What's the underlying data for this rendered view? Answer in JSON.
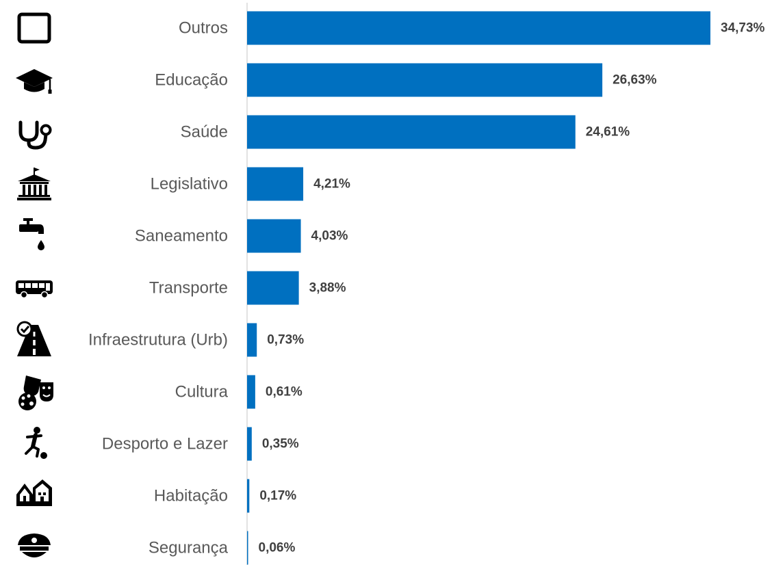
{
  "chart_data": {
    "type": "bar",
    "orientation": "horizontal",
    "categories": [
      "Outros",
      "Educação",
      "Saúde",
      "Legislativo",
      "Saneamento",
      "Transporte",
      "Infraestrutura (Urb)",
      "Cultura",
      "Desporto e Lazer",
      "Habitação",
      "Segurança"
    ],
    "values": [
      34.73,
      26.63,
      24.61,
      4.21,
      4.03,
      3.88,
      0.73,
      0.61,
      0.35,
      0.17,
      0.06
    ],
    "value_labels": [
      "34,73%",
      "26,63%",
      "24,61%",
      "4,21%",
      "4,03%",
      "3,88%",
      "0,73%",
      "0,61%",
      "0,35%",
      "0,17%",
      "0,06%"
    ],
    "icons": [
      "square-outline-icon",
      "graduation-cap-icon",
      "stethoscope-icon",
      "government-building-icon",
      "water-tap-icon",
      "bus-icon",
      "road-check-icon",
      "theater-masks-palette-icon",
      "soccer-player-icon",
      "houses-icon",
      "police-cap-icon"
    ],
    "bar_color": "#0070C0",
    "axis_color": "#D9D9D9",
    "xlim": [
      0,
      34.73
    ],
    "grid": false,
    "legend": "none"
  }
}
